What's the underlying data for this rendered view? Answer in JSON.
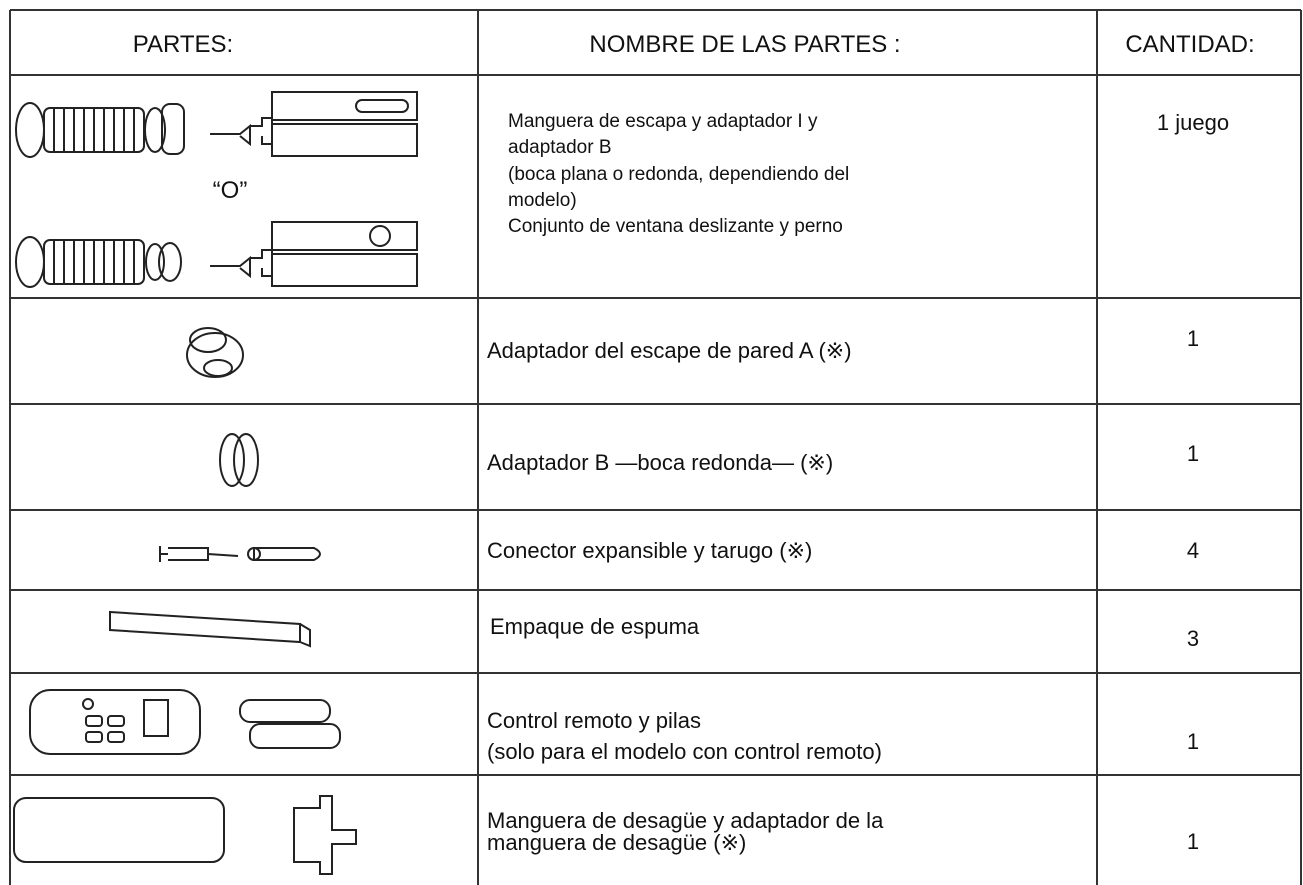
{
  "table": {
    "header": [
      "PARTES:",
      "NOMBRE DE LAS PARTES :",
      "CANTIDAD:"
    ],
    "rows": [
      {
        "part_label": "“O”",
        "name": [
          "Manguera de escapa y adaptador I y",
          "adaptador B",
          "(boca plana o redonda, dependiendo del",
          "modelo)",
          "Conjunto de ventana deslizante y perno"
        ],
        "quantity": "1 juego"
      },
      {
        "name": [
          "Adaptador del escape de pared A (※)"
        ],
        "quantity": "1"
      },
      {
        "name": [
          "Adaptador B —boca redonda— (※)"
        ],
        "quantity": "1"
      },
      {
        "name": [
          "Conector expansible y tarugo (※)"
        ],
        "quantity": "4"
      },
      {
        "name": [
          "Empaque de espuma"
        ],
        "quantity": "3"
      },
      {
        "name": [
          "Control remoto y pilas",
          "(solo para el modelo con control remoto)"
        ],
        "quantity": "1"
      },
      {
        "name": [
          "Manguera de desagüe y adaptador de la",
          "manguera de desagüe (※)"
        ],
        "quantity": "1"
      }
    ]
  }
}
